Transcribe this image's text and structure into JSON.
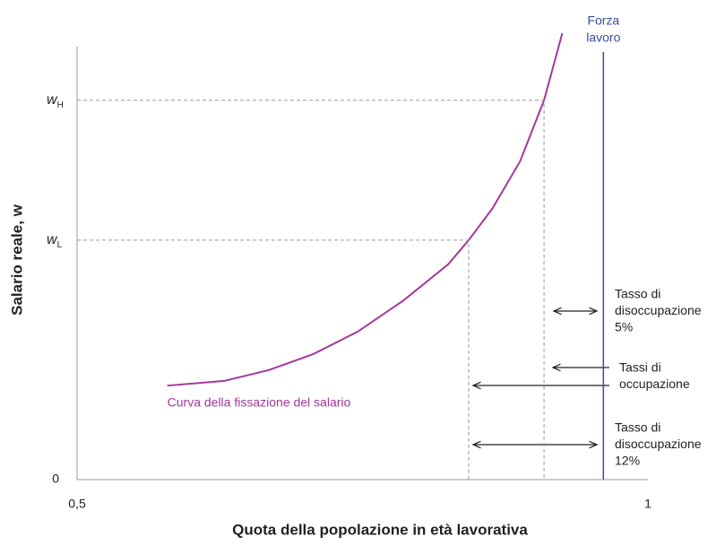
{
  "chart_data": {
    "type": "line",
    "x_label": "Quota della popolazione in età lavorativa",
    "y_label": "Salario reale, w",
    "xlim": [
      0.5,
      1
    ],
    "ylim": [
      0,
      1
    ],
    "xticks": [
      {
        "value": 0.5,
        "label": "0,5"
      },
      1
    ],
    "yticks": [
      0,
      {
        "value": 0.553,
        "label": "wL"
      },
      {
        "value": 0.876,
        "label": "wH"
      }
    ],
    "x": [
      0.579,
      0.629,
      0.668,
      0.707,
      0.746,
      0.786,
      0.825,
      0.843,
      0.864,
      0.888,
      0.909,
      0.925
    ],
    "series": [
      {
        "name": "Curva della fissazione del salario",
        "color": "#a3379f",
        "values": [
          0.217,
          0.228,
          0.253,
          0.29,
          0.342,
          0.414,
          0.497,
          0.553,
          0.627,
          0.735,
          0.876,
          1.031
        ]
      }
    ],
    "labor_force": {
      "x": 0.961,
      "label": [
        "Forza",
        "lavoro"
      ],
      "color": "#3a4d9c"
    },
    "annotations": [
      [
        "Tasso di",
        "disoccupazione",
        "5%"
      ],
      [
        "Tassi di",
        "occupazione"
      ],
      [
        "Tasso di",
        "disoccupazione",
        "12%"
      ]
    ]
  }
}
